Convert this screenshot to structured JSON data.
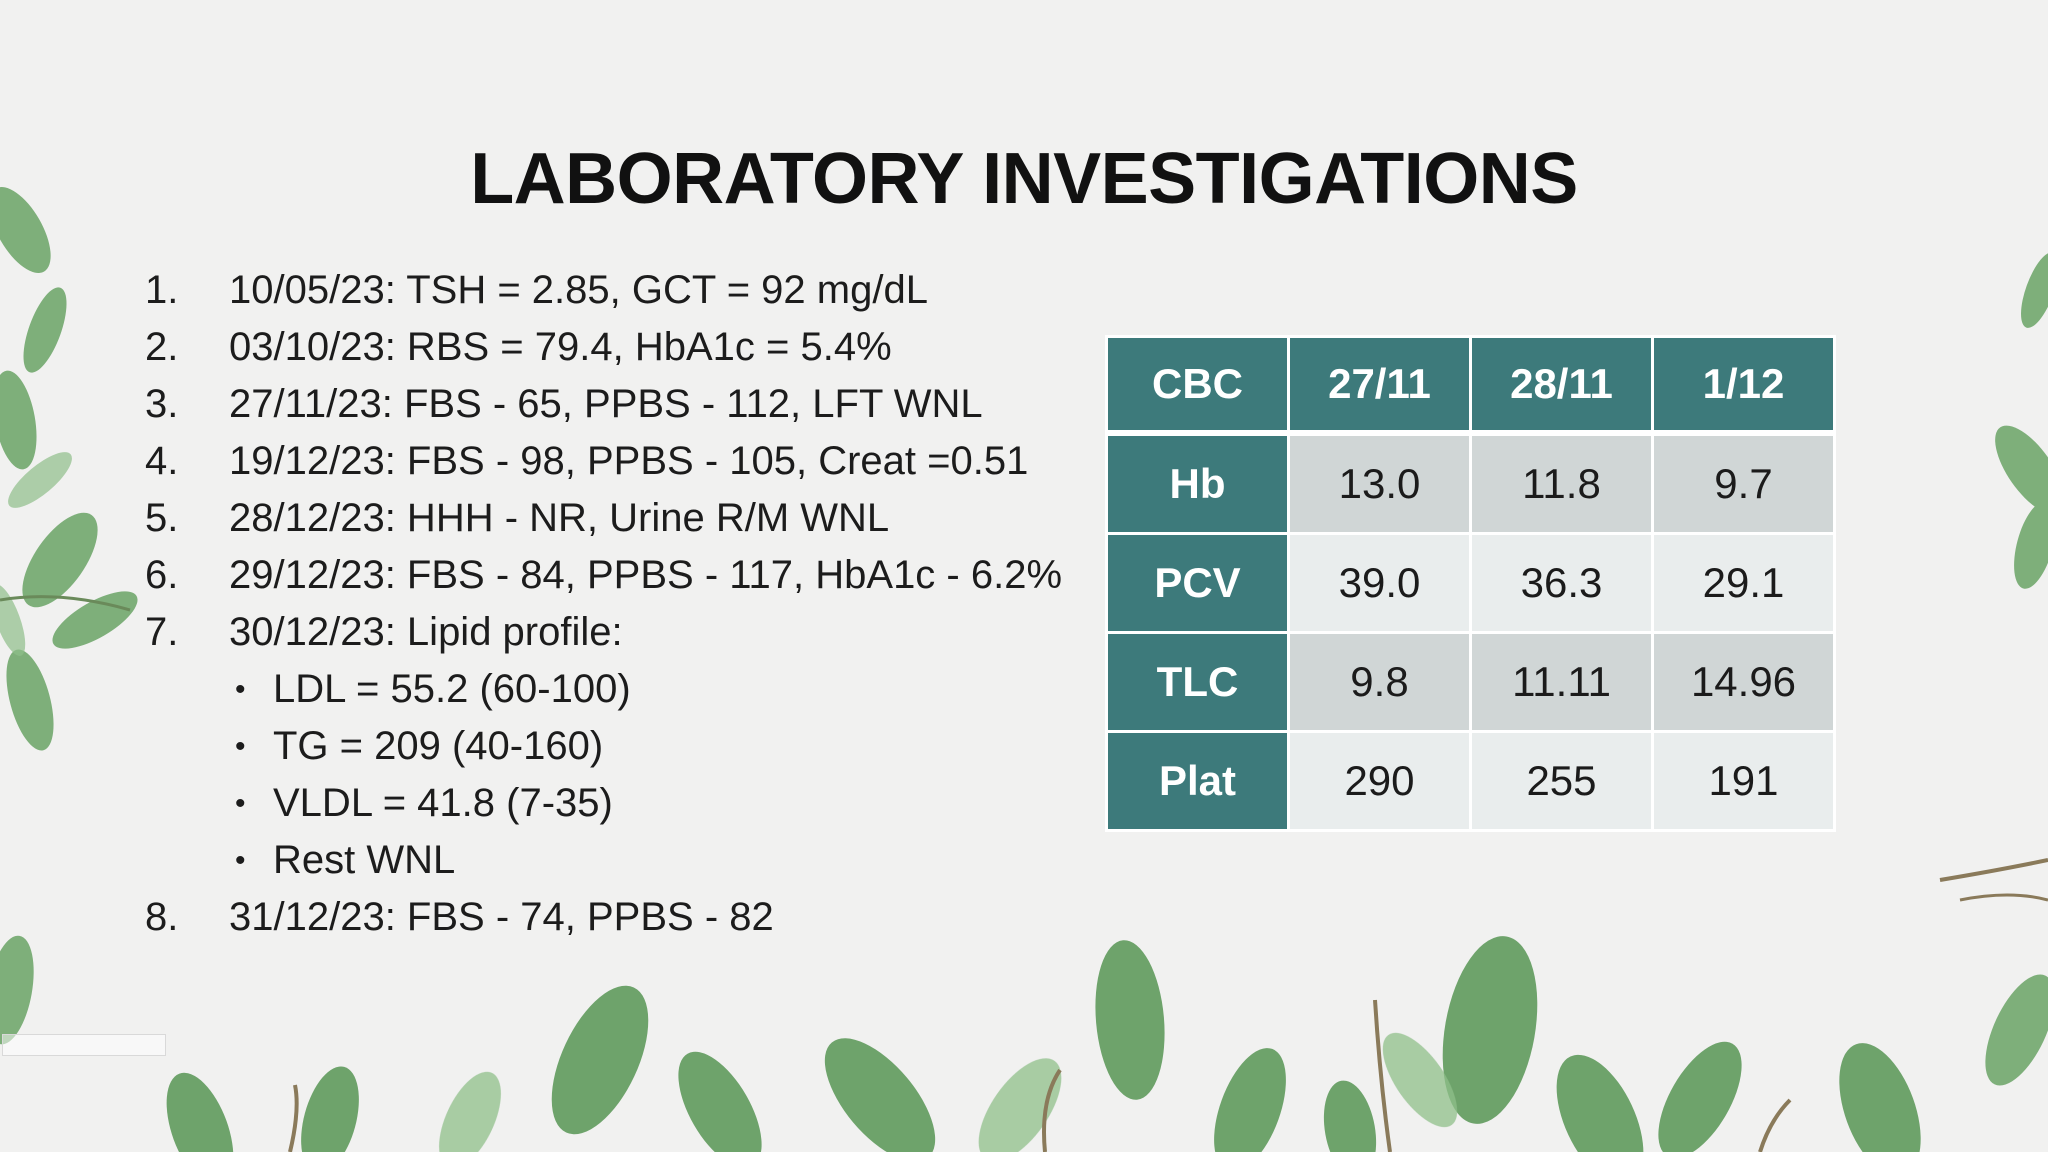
{
  "slide": {
    "title": "LABORATORY INVESTIGATIONS",
    "items": [
      {
        "num": "1.",
        "text": "10/05/23: TSH = 2.85, GCT = 92 mg/dL"
      },
      {
        "num": "2.",
        "text": "03/10/23: RBS = 79.4, HbA1c = 5.4%"
      },
      {
        "num": "3.",
        "text": "27/11/23: FBS - 65, PPBS - 112, LFT WNL"
      },
      {
        "num": "4.",
        "text": "19/12/23: FBS - 98, PPBS - 105, Creat =0.51"
      },
      {
        "num": "5.",
        "text": "28/12/23: HHH - NR, Urine R/M WNL"
      },
      {
        "num": "6.",
        "text": "29/12/23: FBS - 84, PPBS - 117, HbA1c - 6.2%"
      },
      {
        "num": "7.",
        "text": "30/12/23: Lipid profile:"
      },
      {
        "num": "8.",
        "text": "31/12/23: FBS - 74, PPBS - 82"
      }
    ],
    "lipid_subitems": [
      "LDL = 55.2 (60-100)",
      "TG = 209 (40-160)",
      "VLDL = 41.8 (7-35)",
      "Rest WNL"
    ],
    "bullet_glyph": "•"
  },
  "cbc_table": {
    "headers": [
      "CBC",
      "27/11",
      "28/11",
      "1/12"
    ],
    "rows": [
      {
        "label": "Hb",
        "values": [
          "13.0",
          "11.8",
          "9.7"
        ]
      },
      {
        "label": "PCV",
        "values": [
          "39.0",
          "36.3",
          "29.1"
        ]
      },
      {
        "label": "TLC",
        "values": [
          "9.8",
          "11.11",
          "14.96"
        ]
      },
      {
        "label": "Plat",
        "values": [
          "290",
          "255",
          "191"
        ]
      }
    ]
  },
  "colors": {
    "background": "#f1f1f0",
    "table_header": "#3d7a7b",
    "row_dark": "#d0d6d6",
    "row_light": "#e9eded",
    "leaf": "#5f9a5c"
  }
}
